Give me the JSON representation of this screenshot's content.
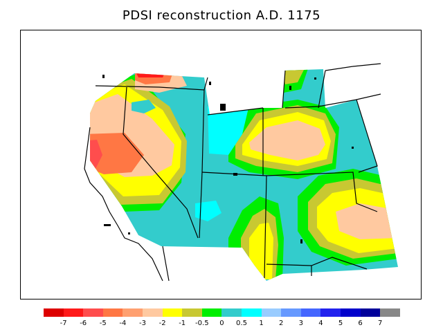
{
  "title": "PDSI reconstruction A.D. 1175",
  "colorbar": {
    "colors": [
      "#dd0000",
      "#ff1a1a",
      "#ff4d4d",
      "#ff7744",
      "#ffa070",
      "#ffc9a0",
      "#ffff00",
      "#c8c832",
      "#00ee00",
      "#33cccc",
      "#00ffff",
      "#99ccff",
      "#6699ff",
      "#4466ff",
      "#2222ee",
      "#0000cc",
      "#00009a",
      "#888888"
    ],
    "labels": [
      "-7",
      "-6",
      "-5",
      "-4",
      "-3",
      "-2",
      "-1",
      "-0.5",
      "0",
      "0.5",
      "1",
      "2",
      "3",
      "4",
      "5",
      "6",
      "7"
    ]
  }
}
